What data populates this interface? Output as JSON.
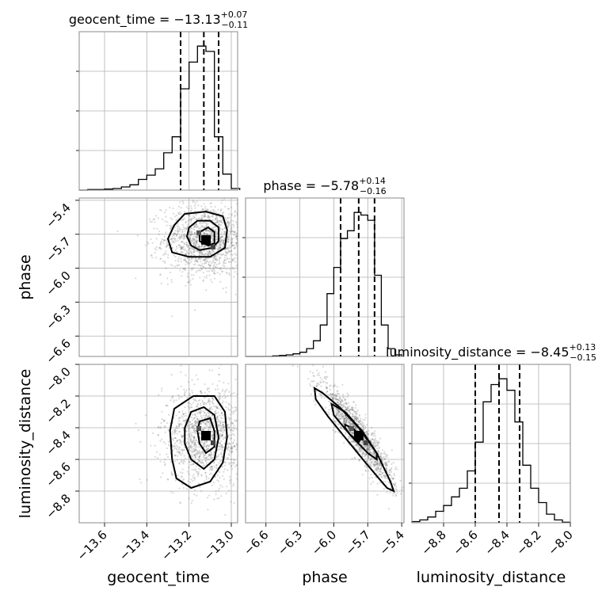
{
  "colors": {
    "hist": "#000000",
    "grid": "#b0b0b0",
    "points": "#555555",
    "frame": "#888888"
  },
  "chart_data": {
    "type": "corner",
    "parameters": [
      "geocent_time",
      "phase",
      "luminosity_distance"
    ],
    "grid": true,
    "ranges": {
      "geocent_time": [
        -13.72,
        -12.97
      ],
      "phase": [
        -6.78,
        -5.38
      ],
      "luminosity_distance": [
        -9.0,
        -8.0
      ]
    },
    "ticks": {
      "geocent_time": [
        -13.6,
        -13.4,
        -13.2,
        -13.0
      ],
      "phase": [
        -6.6,
        -6.3,
        -6.0,
        -5.7,
        -5.4
      ],
      "luminosity_distance": [
        -8.8,
        -8.6,
        -8.4,
        -8.2,
        -8.0
      ]
    },
    "tick_labels": {
      "geocent_time": [
        "−13.6",
        "−13.4",
        "−13.2",
        "−13.0"
      ],
      "phase": [
        "−6.6",
        "−6.3",
        "−6.0",
        "−5.7",
        "−5.4"
      ],
      "luminosity_distance": [
        "−8.8",
        "−8.6",
        "−8.4",
        "−8.2",
        "−8.0"
      ]
    },
    "titles": {
      "geocent_time": {
        "name": "geocent_time",
        "value": "−13.13",
        "plus": "+0.07",
        "minus": "−0.11"
      },
      "phase": {
        "name": "phase",
        "value": "−5.78",
        "plus": "+0.14",
        "minus": "−0.16"
      },
      "luminosity_distance": {
        "name": "luminosity_distance",
        "value": "−8.45",
        "plus": "+0.13",
        "minus": "−0.15"
      }
    },
    "quantiles": {
      "geocent_time": [
        -13.24,
        -13.13,
        -13.06
      ],
      "phase": [
        -5.94,
        -5.78,
        -5.64
      ],
      "luminosity_distance": [
        -8.6,
        -8.45,
        -8.32
      ]
    },
    "histograms": {
      "geocent_time": {
        "edges": [
          -13.72,
          -13.68,
          -13.64,
          -13.6,
          -13.56,
          -13.52,
          -13.48,
          -13.44,
          -13.4,
          -13.36,
          -13.32,
          -13.28,
          -13.24,
          -13.2,
          -13.16,
          -13.12,
          -13.08,
          -13.04,
          -13.0,
          -12.96
        ],
        "counts": [
          0,
          1,
          1,
          2,
          3,
          6,
          10,
          20,
          28,
          40,
          70,
          100,
          190,
          240,
          270,
          260,
          100,
          30,
          3
        ]
      },
      "phase": {
        "edges": [
          -6.78,
          -6.72,
          -6.66,
          -6.6,
          -6.54,
          -6.48,
          -6.42,
          -6.36,
          -6.3,
          -6.24,
          -6.18,
          -6.12,
          -6.06,
          -6.0,
          -5.94,
          -5.88,
          -5.82,
          -5.76,
          -5.7,
          -5.64,
          -5.58,
          -5.52,
          -5.46,
          -5.4
        ],
        "counts": [
          0,
          0,
          0,
          0,
          1,
          2,
          3,
          5,
          8,
          15,
          30,
          60,
          120,
          170,
          225,
          240,
          275,
          270,
          260,
          155,
          60,
          15,
          3
        ]
      },
      "luminosity_distance": {
        "edges": [
          -9.0,
          -8.95,
          -8.9,
          -8.85,
          -8.8,
          -8.75,
          -8.7,
          -8.65,
          -8.6,
          -8.55,
          -8.5,
          -8.45,
          -8.4,
          -8.35,
          -8.3,
          -8.25,
          -8.2,
          -8.15,
          -8.1,
          -8.05,
          -8.0
        ],
        "counts": [
          2,
          5,
          10,
          20,
          30,
          45,
          60,
          90,
          140,
          210,
          240,
          250,
          230,
          175,
          100,
          60,
          35,
          15,
          5,
          1
        ]
      }
    },
    "panels_2d": [
      {
        "x": "geocent_time",
        "y": "phase",
        "center": [
          -13.12,
          -5.75
        ],
        "spread": [
          0.09,
          0.14
        ],
        "corr": 0.0,
        "contours": [
          [
            [
              -13.27,
              -5.62
            ],
            [
              -13.22,
              -5.52
            ],
            [
              -13.12,
              -5.5
            ],
            [
              -13.04,
              -5.54
            ],
            [
              -13.02,
              -5.66
            ],
            [
              -13.03,
              -5.82
            ],
            [
              -13.1,
              -5.9
            ],
            [
              -13.2,
              -5.9
            ],
            [
              -13.28,
              -5.86
            ],
            [
              -13.3,
              -5.74
            ]
          ],
          [
            [
              -13.2,
              -5.64
            ],
            [
              -13.16,
              -5.58
            ],
            [
              -13.1,
              -5.58
            ],
            [
              -13.06,
              -5.64
            ],
            [
              -13.06,
              -5.76
            ],
            [
              -13.09,
              -5.82
            ],
            [
              -13.15,
              -5.84
            ],
            [
              -13.19,
              -5.8
            ],
            [
              -13.21,
              -5.72
            ]
          ],
          [
            [
              -13.15,
              -5.68
            ],
            [
              -13.11,
              -5.64
            ],
            [
              -13.08,
              -5.68
            ],
            [
              -13.08,
              -5.78
            ],
            [
              -13.11,
              -5.8
            ],
            [
              -13.15,
              -5.76
            ]
          ]
        ]
      },
      {
        "x": "geocent_time",
        "y": "luminosity_distance",
        "center": [
          -13.12,
          -8.45
        ],
        "spread": [
          0.09,
          0.14
        ],
        "corr": 0.0,
        "contours": [
          [
            [
              -13.29,
              -8.42
            ],
            [
              -13.27,
              -8.28
            ],
            [
              -13.18,
              -8.2
            ],
            [
              -13.08,
              -8.2
            ],
            [
              -13.03,
              -8.3
            ],
            [
              -13.02,
              -8.46
            ],
            [
              -13.04,
              -8.62
            ],
            [
              -13.1,
              -8.74
            ],
            [
              -13.19,
              -8.78
            ],
            [
              -13.26,
              -8.72
            ],
            [
              -13.28,
              -8.6
            ]
          ],
          [
            [
              -13.22,
              -8.4
            ],
            [
              -13.19,
              -8.3
            ],
            [
              -13.13,
              -8.27
            ],
            [
              -13.08,
              -8.32
            ],
            [
              -13.06,
              -8.46
            ],
            [
              -13.08,
              -8.6
            ],
            [
              -13.13,
              -8.66
            ],
            [
              -13.19,
              -8.6
            ],
            [
              -13.22,
              -8.5
            ]
          ],
          [
            [
              -13.15,
              -8.36
            ],
            [
              -13.1,
              -8.34
            ],
            [
              -13.08,
              -8.42
            ],
            [
              -13.08,
              -8.52
            ],
            [
              -13.12,
              -8.56
            ],
            [
              -13.15,
              -8.5
            ],
            [
              -13.16,
              -8.42
            ]
          ]
        ]
      },
      {
        "x": "phase",
        "y": "luminosity_distance",
        "center": [
          -5.78,
          -8.45
        ],
        "spread": [
          0.14,
          0.14
        ],
        "corr": -0.92,
        "contours": [
          [
            [
              -6.17,
              -8.15
            ],
            [
              -6.1,
              -8.18
            ],
            [
              -5.95,
              -8.27
            ],
            [
              -5.78,
              -8.4
            ],
            [
              -5.62,
              -8.56
            ],
            [
              -5.5,
              -8.74
            ],
            [
              -5.47,
              -8.8
            ],
            [
              -5.53,
              -8.78
            ],
            [
              -5.72,
              -8.62
            ],
            [
              -5.88,
              -8.48
            ],
            [
              -6.05,
              -8.33
            ],
            [
              -6.16,
              -8.22
            ]
          ],
          [
            [
              -6.02,
              -8.25
            ],
            [
              -5.9,
              -8.3
            ],
            [
              -5.75,
              -8.42
            ],
            [
              -5.62,
              -8.56
            ],
            [
              -5.62,
              -8.6
            ],
            [
              -5.7,
              -8.56
            ],
            [
              -5.85,
              -8.45
            ],
            [
              -6.0,
              -8.32
            ]
          ],
          [
            [
              -5.9,
              -8.38
            ],
            [
              -5.82,
              -8.41
            ],
            [
              -5.76,
              -8.47
            ],
            [
              -5.78,
              -8.49
            ],
            [
              -5.86,
              -8.44
            ],
            [
              -5.9,
              -8.4
            ]
          ]
        ]
      }
    ]
  }
}
